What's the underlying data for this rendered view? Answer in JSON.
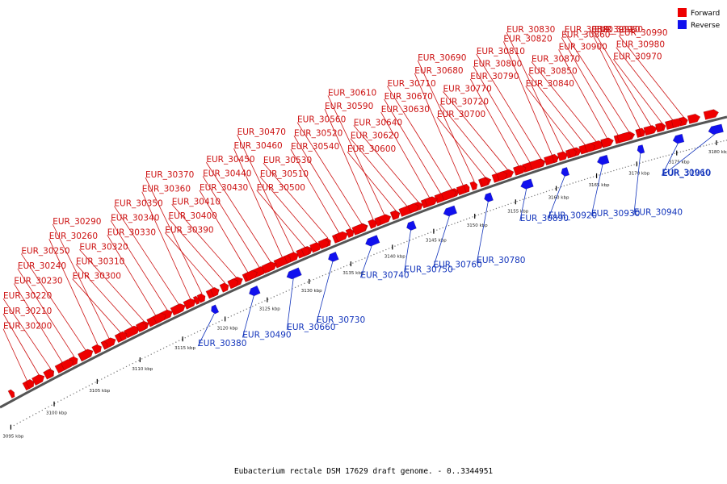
{
  "caption": "Eubacterium rectale DSM 17629 draft genome. - 0..3344951",
  "legend": {
    "forward_label": "Forward",
    "reverse_label": "Reverse",
    "forward_color": "#ee0000",
    "reverse_color": "#1111ee"
  },
  "colors": {
    "forward_label": "#cc1111",
    "reverse_label": "#1133bb",
    "backbone": "#555555"
  },
  "axis": {
    "start_kbp": 3095,
    "end_kbp": 3182,
    "ticks": [
      "3095 kbp",
      "3100 kbp",
      "3105 kbp",
      "3110 kbp",
      "3115 kbp",
      "3120 kbp",
      "3125 kbp",
      "3130 kbp",
      "3135 kbp",
      "3140 kbp",
      "3145 kbp",
      "3150 kbp",
      "3155 kbp",
      "3160 kbp",
      "3165 kbp",
      "3170 kbp",
      "3175 kbp",
      "3180 kbp"
    ]
  },
  "forward_labels": [
    "EUR_30200",
    "EUR_30210",
    "EUR_30220",
    "EUR_30230",
    "EUR_30240",
    "EUR_30250",
    "EUR_30260",
    "EUR_30290",
    "EUR_30300",
    "EUR_30310",
    "EUR_30320",
    "EUR_30330",
    "EUR_30340",
    "EUR_30350",
    "EUR_30360",
    "EUR_30370",
    "EUR_30390",
    "EUR_30400",
    "EUR_30410",
    "EUR_30430",
    "EUR_30440",
    "EUR_30450",
    "EUR_30460",
    "EUR_30470",
    "EUR_30500",
    "EUR_30510",
    "EUR_30530",
    "EUR_30540",
    "EUR_30520",
    "EUR_30560",
    "EUR_30590",
    "EUR_30610",
    "EUR_30600",
    "EUR_30620",
    "EUR_30640",
    "EUR_30630",
    "EUR_30670",
    "EUR_30710",
    "EUR_30680",
    "EUR_30690",
    "EUR_30700",
    "EUR_30720",
    "EUR_30770",
    "EUR_30790",
    "EUR_30800",
    "EUR_30810",
    "EUR_30820",
    "EUR_30830",
    "EUR_30840",
    "EUR_30850",
    "EUR_30870",
    "EUR_30900",
    "EUR_30860",
    "EUR_30880",
    "EUR_30910",
    "EUR_30950",
    "EUR_30970",
    "EUR_30980",
    "EUR_30990"
  ],
  "reverse_labels": [
    "EUR_30380",
    "EUR_30490",
    "EUR_30660",
    "EUR_30730",
    "EUR_30740",
    "EUR_30750",
    "EUR_30760",
    "EUR_30780",
    "EUR_30890",
    "EUR_30920",
    "EUR_30930",
    "EUR_30940",
    "EUR_30960",
    "EUR_31010"
  ]
}
